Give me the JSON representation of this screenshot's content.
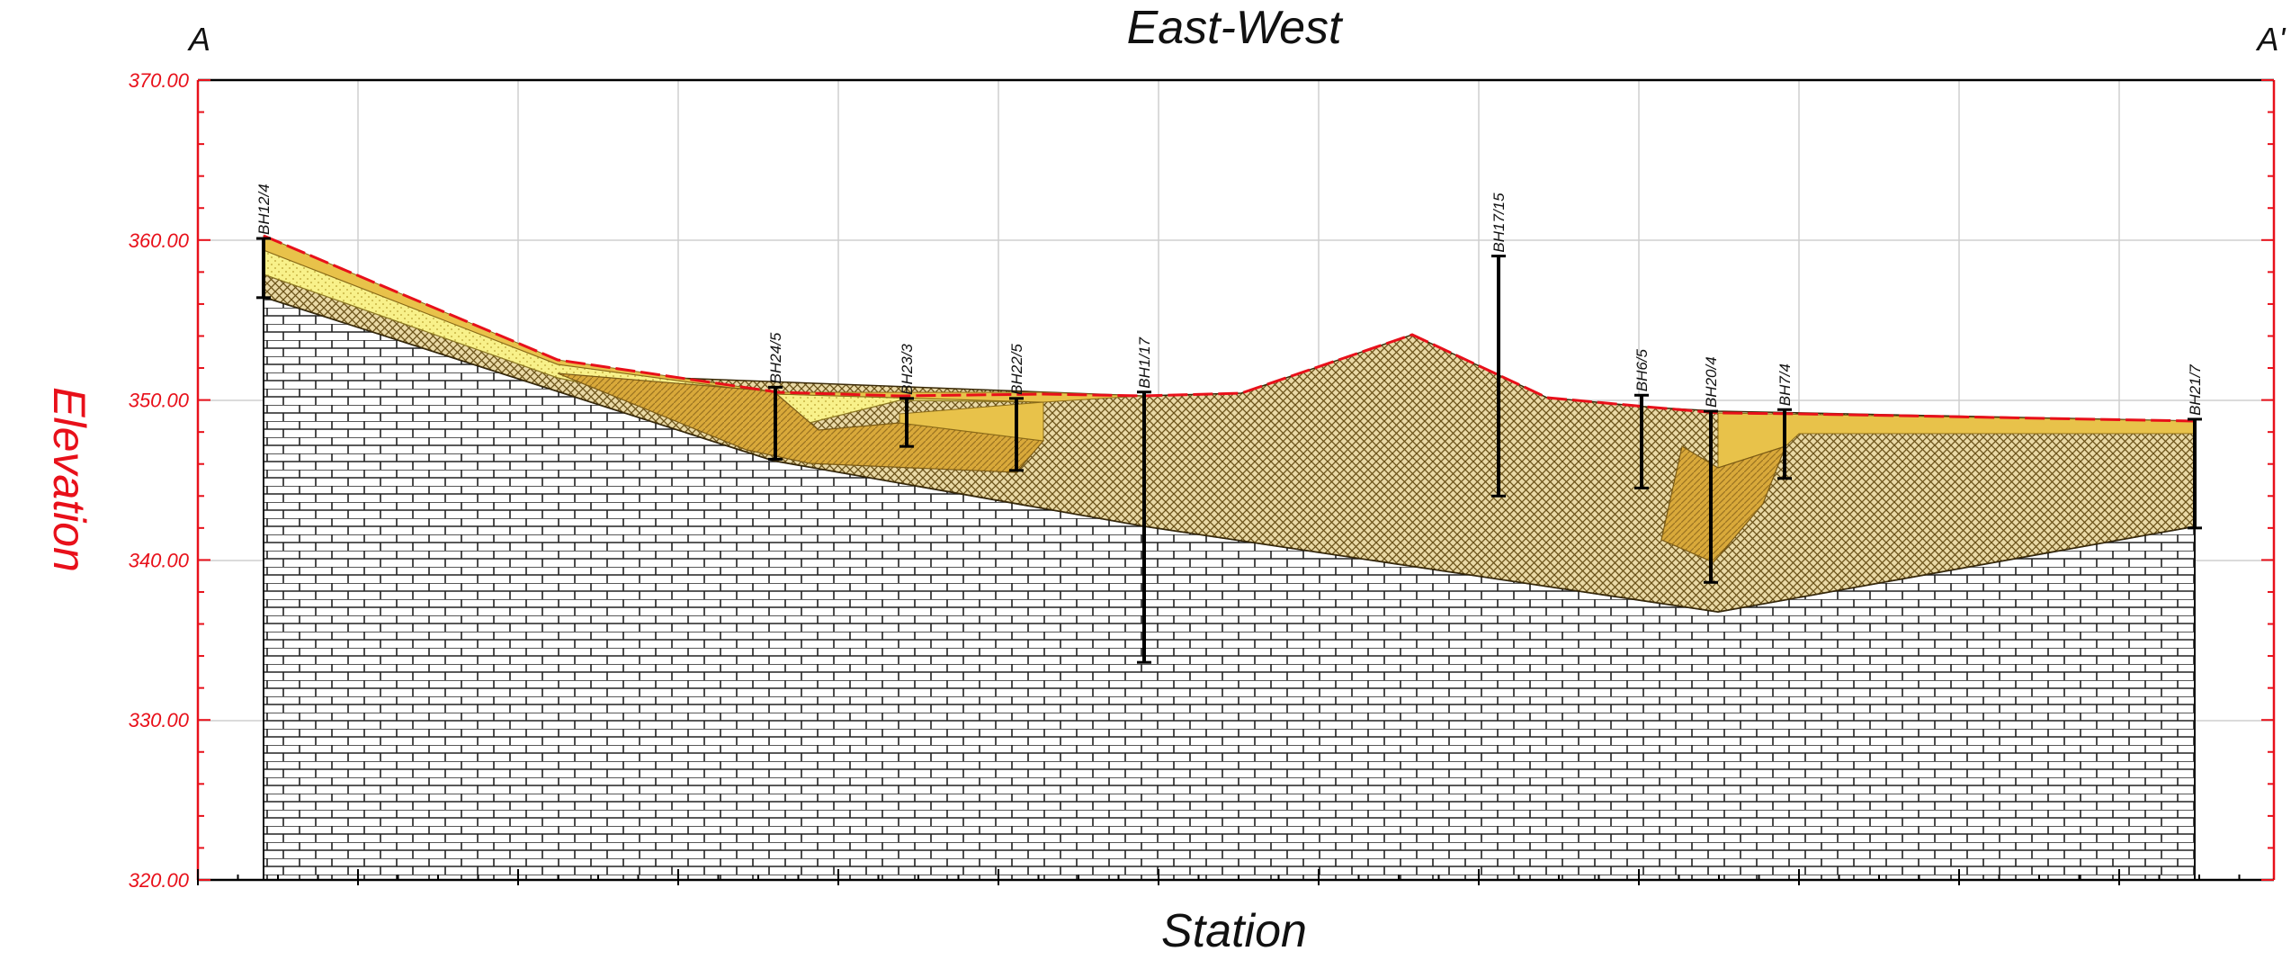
{
  "title": "East-West",
  "label_left": "A",
  "label_right": "A'",
  "xlabel": "Station",
  "ylabel": "Elevation",
  "elevation_range": [
    320,
    370
  ],
  "y_ticks": [
    "370.00",
    "360.00",
    "350.00",
    "340.00",
    "330.00",
    "320.00"
  ],
  "colors": {
    "axis_red": "#e8101a",
    "ground_line": "#e8101a",
    "grid": "#cfcfcf",
    "pale_yellow": "#f8f18a",
    "tan": "#e8c24a",
    "dark_gold": "#c99a2a",
    "crosshatch": "#b08a3a",
    "borehole": "#000000"
  },
  "boreholes": [
    {
      "name": "BH12/4",
      "top": 360.1,
      "bottom": 356.4
    },
    {
      "name": "BH24/5",
      "top": 350.8,
      "bottom": 346.3
    },
    {
      "name": "BH23/3",
      "top": 350.1,
      "bottom": 347.1
    },
    {
      "name": "BH22/5",
      "top": 350.1,
      "bottom": 345.6
    },
    {
      "name": "BH1/17",
      "top": 350.5,
      "bottom": 333.6
    },
    {
      "name": "BH17/15",
      "top": 359.0,
      "bottom": 344.0
    },
    {
      "name": "BH6/5",
      "top": 350.3,
      "bottom": 344.5
    },
    {
      "name": "BH20/4",
      "top": 349.3,
      "bottom": 338.6
    },
    {
      "name": "BH7/4",
      "top": 349.4,
      "bottom": 345.1
    },
    {
      "name": "BH21/7",
      "top": 348.8,
      "bottom": 342.0
    }
  ]
}
